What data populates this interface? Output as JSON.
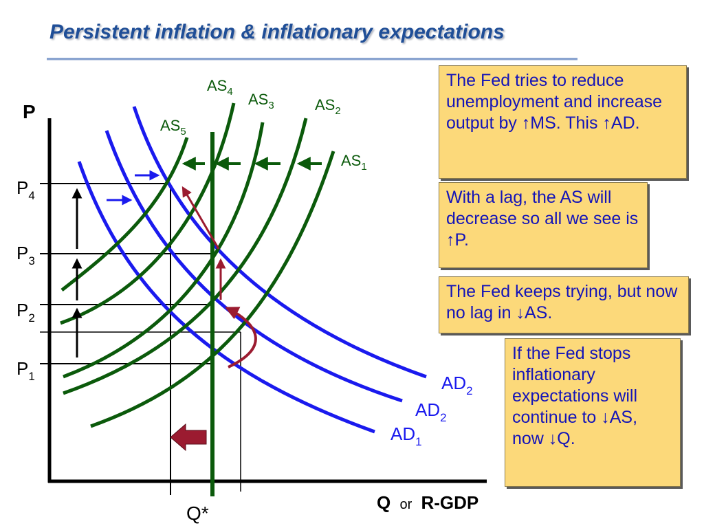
{
  "slide": {
    "title": "Persistent inflation & inflationary expectations"
  },
  "axes": {
    "y_label": "P",
    "x_label_bold1": "Q",
    "x_label_or": "or",
    "x_label_bold2": "R-GDP",
    "q_star": "Q*"
  },
  "price_levels": [
    {
      "base": "P",
      "sub": "4"
    },
    {
      "base": "P",
      "sub": "3"
    },
    {
      "base": "P",
      "sub": "2"
    },
    {
      "base": "P",
      "sub": "1"
    }
  ],
  "as_curves": [
    {
      "base": "AS",
      "sub": "1"
    },
    {
      "base": "AS",
      "sub": "2"
    },
    {
      "base": "AS",
      "sub": "3"
    },
    {
      "base": "AS",
      "sub": "4"
    },
    {
      "base": "AS",
      "sub": "5"
    }
  ],
  "ad_curves": [
    {
      "base": "AD",
      "sub": "2"
    },
    {
      "base": "AD",
      "sub": "2"
    },
    {
      "base": "AD",
      "sub": "1"
    }
  ],
  "notes": [
    "The Fed tries to reduce unemployment and increase output by ↑MS. This ↑AD.",
    "With a lag, the AS will decrease so all we see is ↑P.",
    "The Fed keeps trying, but now no lag in ↓AS.",
    "If the Fed stops inflationary expectations will continue to ↓AS, now ↓Q."
  ],
  "colors": {
    "title": "#1f4e97",
    "as_curve": "#0b5a0b",
    "ad_curve": "#1a1aee",
    "red_arrow": "#9b1b30",
    "note_bg": "#fcd97a",
    "note_text": "#1414b8"
  }
}
